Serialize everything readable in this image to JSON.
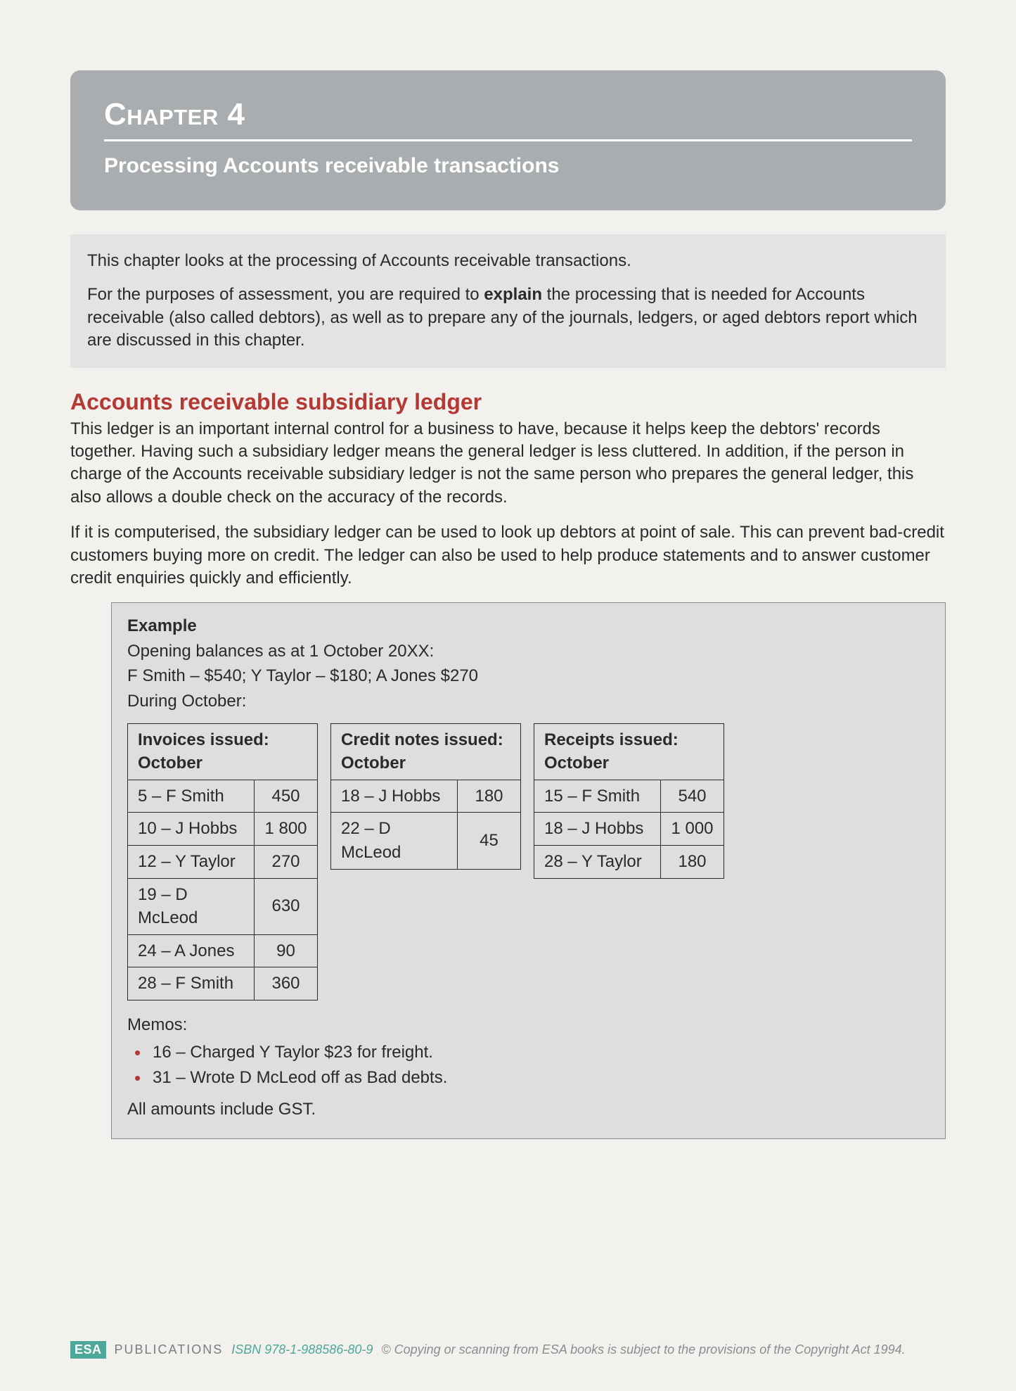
{
  "header": {
    "chapter_label": "Chapter 4",
    "subtitle": "Processing Accounts receivable transactions"
  },
  "intro": {
    "p1": "This chapter looks at the processing of Accounts receivable transactions.",
    "p2a": "For the purposes of assessment, you are required to ",
    "p2bold": "explain",
    "p2b": " the processing that is needed for Accounts receivable (also called debtors), as well as to prepare any of the journals, ledgers, or aged debtors report which are discussed in this chapter."
  },
  "section": {
    "heading": "Accounts receivable subsidiary ledger",
    "p1": "This ledger is an important internal control for a business to have, because it helps keep the debtors' records together. Having such a subsidiary ledger means the general ledger is less cluttered. In addition, if the person in charge of the Accounts receivable subsidiary ledger is not the same person who prepares the general ledger, this also allows a double check on the accuracy of the records.",
    "p2": "If it is computerised, the subsidiary ledger can be used to look up debtors at point of sale. This can prevent bad-credit customers buying more on credit. The ledger can also be used to help produce statements and to answer customer credit enquiries quickly and efficiently."
  },
  "example": {
    "title": "Example",
    "opening_label": "Opening balances as at 1 October 20XX:",
    "opening_values": "F Smith – $540; Y Taylor – $180; A Jones $270",
    "during": "During October:",
    "invoices": {
      "header": "Invoices issued: October",
      "rows": [
        {
          "name": "5 – F Smith",
          "val": "450"
        },
        {
          "name": "10 – J Hobbs",
          "val": "1 800"
        },
        {
          "name": "12 – Y Taylor",
          "val": "270"
        },
        {
          "name": "19 – D McLeod",
          "val": "630"
        },
        {
          "name": "24 – A Jones",
          "val": "90"
        },
        {
          "name": "28 – F Smith",
          "val": "360"
        }
      ]
    },
    "credit_notes": {
      "header": "Credit notes issued: October",
      "rows": [
        {
          "name": "18 – J Hobbs",
          "val": "180"
        },
        {
          "name": "22 – D McLeod",
          "val": "45"
        }
      ]
    },
    "receipts": {
      "header": "Receipts issued: October",
      "rows": [
        {
          "name": "15 – F Smith",
          "val": "540"
        },
        {
          "name": "18 – J Hobbs",
          "val": "1 000"
        },
        {
          "name": "28 – Y Taylor",
          "val": "180"
        }
      ]
    },
    "memos_label": "Memos:",
    "memos": [
      "16 – Charged Y Taylor $23 for freight.",
      "31 – Wrote D McLeod off as Bad debts."
    ],
    "gst_note": "All amounts include GST."
  },
  "footer": {
    "badge": "ESA",
    "publications": "PUBLICATIONS",
    "isbn": "ISBN 978-1-988586-80-9",
    "copyright": "© Copying or scanning from ESA books is subject to the provisions of the Copyright Act 1994."
  },
  "colors": {
    "page_bg": "#f2f1ed",
    "header_bg": "#a9adaf",
    "heading_red": "#b43833",
    "box_bg": "#dcdedf",
    "badge_bg": "#4ea89a"
  }
}
